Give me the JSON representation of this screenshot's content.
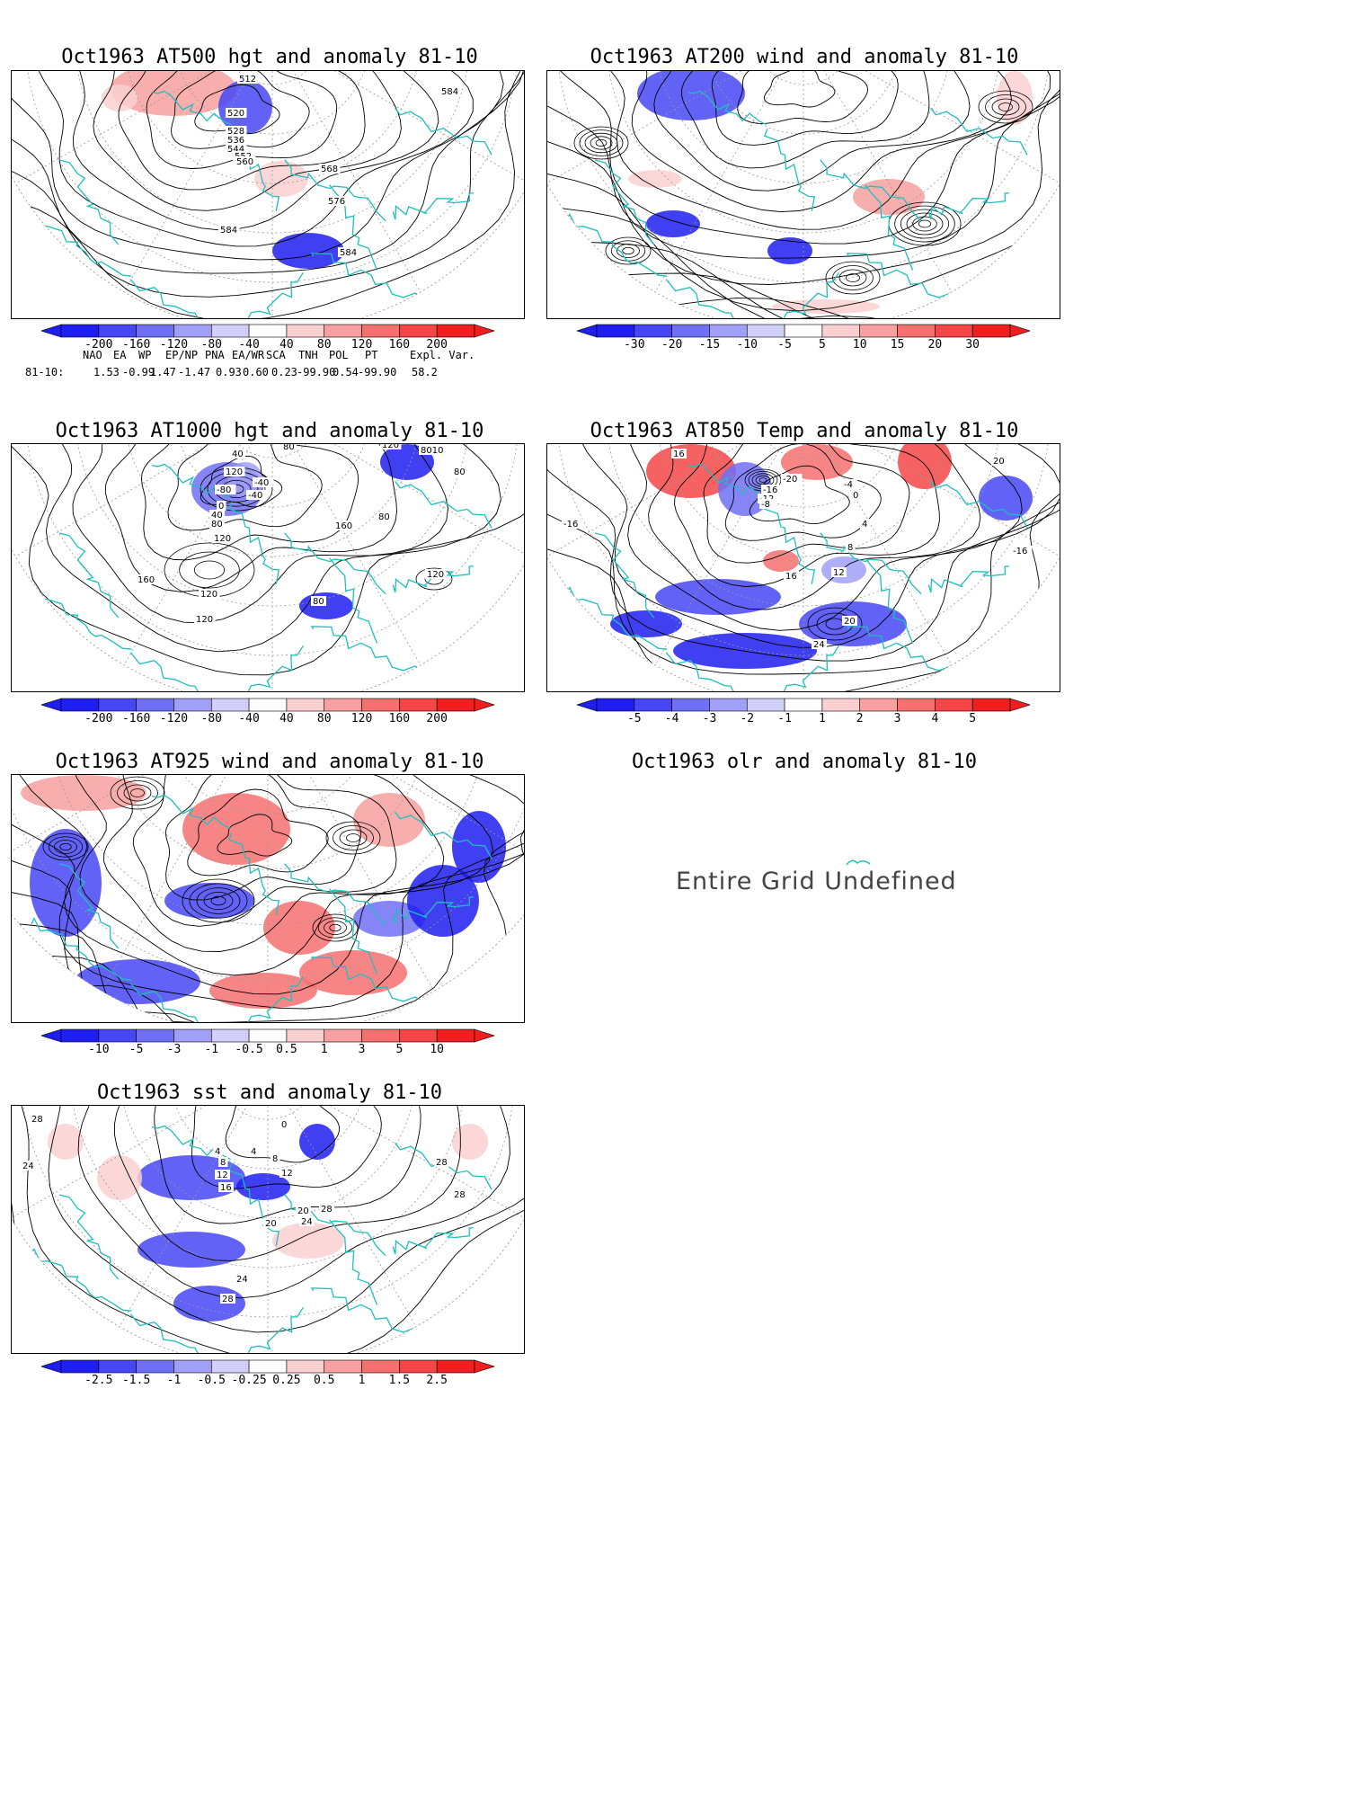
{
  "panels": [
    {
      "id": "p1",
      "title": "Oct1963 AT500 hgt and anomaly 81-10",
      "kind": "contour",
      "labels": [
        "512",
        "520",
        "528",
        "536",
        "544",
        "552",
        "560",
        "568",
        "576",
        "584",
        "584",
        "584"
      ],
      "colorbar": [
        "-200",
        "-160",
        "-120",
        "-80",
        "-40",
        "40",
        "80",
        "120",
        "160",
        "200"
      ]
    },
    {
      "id": "p2",
      "title": "Oct1963 AT200 wind and anomaly 81-10",
      "kind": "wind",
      "labels": [],
      "colorbar": [
        "-30",
        "-20",
        "-15",
        "-10",
        "-5",
        "5",
        "10",
        "15",
        "20",
        "30"
      ]
    },
    {
      "id": "p3",
      "title": "Oct1963 AT1000 hgt and anomaly 81-10",
      "kind": "contour",
      "labels": [
        "80",
        "-40",
        "120",
        "40",
        "-80",
        "-40",
        "0",
        "40",
        "80",
        "120",
        "160",
        "160",
        "120",
        "80",
        "120",
        "120",
        "80",
        "80",
        "8010",
        "120"
      ],
      "colorbar": [
        "-200",
        "-160",
        "-120",
        "-80",
        "-40",
        "40",
        "80",
        "120",
        "160",
        "200"
      ]
    },
    {
      "id": "p4",
      "title": "Oct1963 AT850 Temp and anomaly 81-10",
      "kind": "contour",
      "labels": [
        "16",
        "-20",
        "-16",
        "-12",
        "-8",
        "-4",
        "0",
        "4",
        "8",
        "12",
        "16",
        "20",
        "24",
        "20",
        "-16",
        "-16"
      ],
      "colorbar": [
        "-5",
        "-4",
        "-3",
        "-2",
        "-1",
        "1",
        "2",
        "3",
        "4",
        "5"
      ]
    },
    {
      "id": "p5",
      "title": "Oct1963 AT925 wind and anomaly 81-10",
      "kind": "wind",
      "labels": [],
      "colorbar": [
        "-10",
        "-5",
        "-3",
        "-1",
        "-0.5",
        "0.5",
        "1",
        "3",
        "5",
        "10"
      ]
    },
    {
      "id": "p6",
      "title": "Oct1963 olr and anomaly 81-10",
      "kind": "undefined",
      "undefined_text": "Entire Grid Undefined"
    },
    {
      "id": "p7",
      "title": "Oct1963 sst and anomaly 81-10",
      "kind": "contour",
      "labels": [
        "28",
        "24",
        "0",
        "4",
        "4",
        "8",
        "8",
        "12",
        "12",
        "16",
        "20",
        "20",
        "24",
        "24",
        "28",
        "28",
        "28",
        "28"
      ],
      "colorbar": [
        "-2.5",
        "-1.5",
        "-1",
        "-0.5",
        "-0.25",
        "0.25",
        "0.5",
        "1",
        "1.5",
        "2.5"
      ]
    }
  ],
  "index_table": {
    "headers": [
      "NAO",
      "EA",
      "WP",
      "EP/NP",
      "PNA",
      "EA/WR",
      "SCA",
      "TNH",
      "POL",
      "PT",
      "Expl. Var."
    ],
    "row_label": "81-10:",
    "values": [
      "1.53",
      "-0.99",
      "1.47",
      "-1.47",
      "0.93",
      "0.60",
      "0.23",
      "-99.90",
      "0.54",
      "-99.90",
      "58.2"
    ]
  },
  "colors": {
    "coast": "#1fbfbf",
    "neg": [
      "#1e1ef0",
      "#4646f4",
      "#7070f6",
      "#a0a0f8",
      "#d0d0fa"
    ],
    "pos": [
      "#fad0d0",
      "#f8a0a0",
      "#f67070",
      "#f44646",
      "#f01e1e"
    ]
  }
}
